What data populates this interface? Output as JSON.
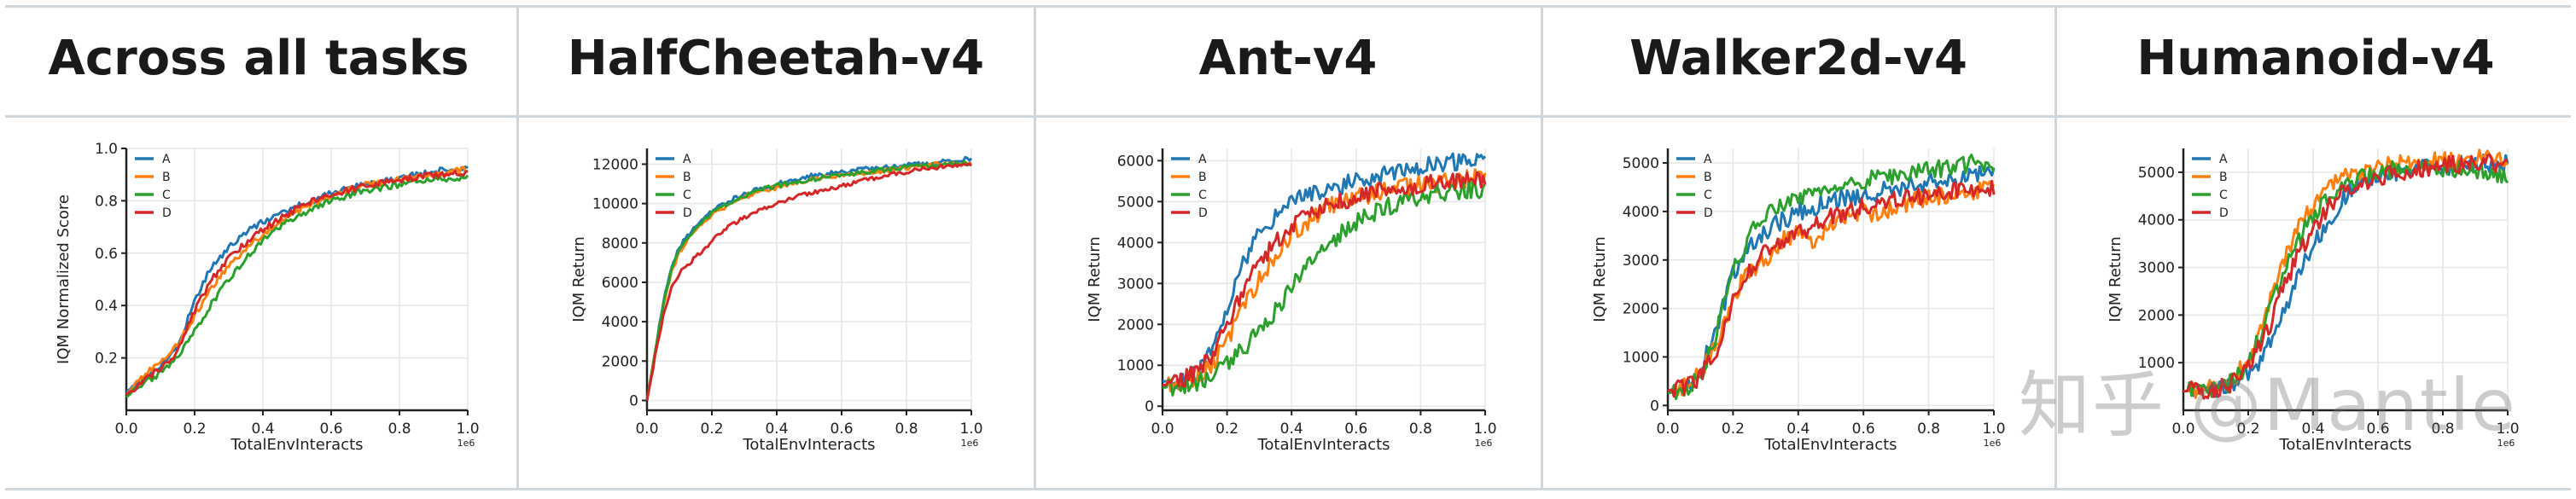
{
  "chart_data": [
    {
      "type": "line",
      "title": "Across all tasks",
      "xlabel": "TotalEnvInteracts",
      "ylabel": "IQM Normalized Score",
      "x_exponent": "1e6",
      "xlim": [
        0,
        1.0
      ],
      "ylim": [
        0,
        1.0
      ],
      "xticks": [
        0.0,
        0.2,
        0.4,
        0.6,
        0.8,
        1.0
      ],
      "xtick_labels": [
        "0.0",
        "0.2",
        "0.4",
        "0.6",
        "0.8",
        "1.0"
      ],
      "yticks": [
        0.2,
        0.4,
        0.6,
        0.8,
        1.0
      ],
      "ytick_labels": [
        "0.2",
        "0.4",
        "0.6",
        "0.8",
        "1.0"
      ],
      "grid": true,
      "legend": "top-left",
      "x": [
        0.0,
        0.05,
        0.1,
        0.15,
        0.2,
        0.25,
        0.3,
        0.35,
        0.4,
        0.45,
        0.5,
        0.55,
        0.6,
        0.65,
        0.7,
        0.75,
        0.8,
        0.85,
        0.9,
        0.95,
        1.0
      ],
      "series": [
        {
          "name": "A",
          "values": [
            0.07,
            0.12,
            0.17,
            0.24,
            0.42,
            0.55,
            0.62,
            0.68,
            0.72,
            0.75,
            0.78,
            0.8,
            0.83,
            0.85,
            0.86,
            0.88,
            0.89,
            0.9,
            0.91,
            0.92,
            0.93
          ]
        },
        {
          "name": "B",
          "values": [
            0.06,
            0.13,
            0.19,
            0.25,
            0.36,
            0.47,
            0.55,
            0.62,
            0.67,
            0.72,
            0.76,
            0.79,
            0.82,
            0.84,
            0.86,
            0.87,
            0.88,
            0.89,
            0.9,
            0.91,
            0.92
          ]
        },
        {
          "name": "C",
          "values": [
            0.05,
            0.1,
            0.14,
            0.2,
            0.3,
            0.41,
            0.5,
            0.58,
            0.65,
            0.7,
            0.74,
            0.77,
            0.8,
            0.82,
            0.84,
            0.85,
            0.86,
            0.87,
            0.88,
            0.88,
            0.89
          ]
        },
        {
          "name": "D",
          "values": [
            0.06,
            0.11,
            0.16,
            0.22,
            0.38,
            0.5,
            0.58,
            0.64,
            0.69,
            0.73,
            0.77,
            0.8,
            0.82,
            0.84,
            0.86,
            0.87,
            0.88,
            0.89,
            0.9,
            0.9,
            0.91
          ]
        }
      ]
    },
    {
      "type": "line",
      "title": "HalfCheetah-v4",
      "xlabel": "TotalEnvInteracts",
      "ylabel": "IQM Return",
      "x_exponent": "1e6",
      "xlim": [
        0,
        1.0
      ],
      "ylim": [
        -500,
        12800
      ],
      "xticks": [
        0.0,
        0.2,
        0.4,
        0.6,
        0.8,
        1.0
      ],
      "xtick_labels": [
        "0.0",
        "0.2",
        "0.4",
        "0.6",
        "0.8",
        "1.0"
      ],
      "yticks": [
        0,
        2000,
        4000,
        6000,
        8000,
        10000,
        12000
      ],
      "ytick_labels": [
        "0",
        "2000",
        "4000",
        "6000",
        "8000",
        "10000",
        "12000"
      ],
      "grid": true,
      "legend": "top-left",
      "x": [
        0.0,
        0.025,
        0.05,
        0.075,
        0.1,
        0.15,
        0.2,
        0.25,
        0.3,
        0.35,
        0.4,
        0.45,
        0.5,
        0.55,
        0.6,
        0.65,
        0.7,
        0.75,
        0.8,
        0.85,
        0.9,
        0.95,
        1.0
      ],
      "series": [
        {
          "name": "A",
          "values": [
            0,
            2500,
            5000,
            6800,
            7800,
            8900,
            9600,
            10100,
            10500,
            10800,
            11000,
            11200,
            11400,
            11500,
            11600,
            11700,
            11800,
            11900,
            11950,
            12000,
            12100,
            12200,
            12300
          ]
        },
        {
          "name": "B",
          "values": [
            0,
            2400,
            4800,
            6500,
            7500,
            8700,
            9400,
            9900,
            10300,
            10600,
            10800,
            11000,
            11200,
            11300,
            11400,
            11500,
            11600,
            11700,
            11800,
            11900,
            12000,
            12050,
            12100
          ]
        },
        {
          "name": "C",
          "values": [
            0,
            2450,
            4900,
            6600,
            7600,
            8800,
            9500,
            10000,
            10400,
            10700,
            10900,
            11100,
            11200,
            11350,
            11450,
            11550,
            11650,
            11750,
            11850,
            11900,
            11950,
            12000,
            12050
          ]
        },
        {
          "name": "D",
          "values": [
            0,
            2200,
            4300,
            5700,
            6500,
            7300,
            8100,
            8800,
            9300,
            9700,
            10000,
            10300,
            10500,
            10700,
            10900,
            11100,
            11300,
            11450,
            11600,
            11750,
            11850,
            11950,
            12000
          ]
        }
      ]
    },
    {
      "type": "line",
      "title": "Ant-v4",
      "xlabel": "TotalEnvInteracts",
      "ylabel": "IQM Return",
      "x_exponent": "1e6",
      "xlim": [
        0,
        1.0
      ],
      "ylim": [
        -100,
        6300
      ],
      "xticks": [
        0.0,
        0.2,
        0.4,
        0.6,
        0.8,
        1.0
      ],
      "xtick_labels": [
        "0.0",
        "0.2",
        "0.4",
        "0.6",
        "0.8",
        "1.0"
      ],
      "yticks": [
        0,
        1000,
        2000,
        3000,
        4000,
        5000,
        6000
      ],
      "ytick_labels": [
        "0",
        "1000",
        "2000",
        "3000",
        "4000",
        "5000",
        "6000"
      ],
      "grid": true,
      "legend": "top-left",
      "x": [
        0.0,
        0.05,
        0.1,
        0.15,
        0.2,
        0.25,
        0.3,
        0.35,
        0.4,
        0.45,
        0.5,
        0.55,
        0.6,
        0.65,
        0.7,
        0.75,
        0.8,
        0.85,
        0.9,
        0.95,
        1.0
      ],
      "series": [
        {
          "name": "A",
          "values": [
            600,
            650,
            750,
            1300,
            2400,
            3500,
            4200,
            4600,
            5000,
            5200,
            5300,
            5400,
            5500,
            5600,
            5700,
            5800,
            5850,
            5900,
            5950,
            6000,
            6050
          ]
        },
        {
          "name": "B",
          "values": [
            500,
            600,
            700,
            1000,
            1600,
            2400,
            3100,
            3700,
            4200,
            4500,
            4800,
            5000,
            5100,
            5200,
            5300,
            5350,
            5400,
            5450,
            5500,
            5550,
            5600
          ]
        },
        {
          "name": "C",
          "values": [
            450,
            500,
            550,
            700,
            1000,
            1400,
            1800,
            2300,
            2900,
            3400,
            3800,
            4200,
            4500,
            4700,
            4900,
            5000,
            5100,
            5200,
            5250,
            5300,
            5300
          ]
        },
        {
          "name": "D",
          "values": [
            500,
            600,
            800,
            1200,
            2000,
            2800,
            3500,
            4000,
            4400,
            4700,
            4900,
            5000,
            5100,
            5200,
            5300,
            5350,
            5400,
            5450,
            5500,
            5500,
            5500
          ]
        }
      ]
    },
    {
      "type": "line",
      "title": "Walker2d-v4",
      "xlabel": "TotalEnvInteracts",
      "ylabel": "IQM Return",
      "x_exponent": "1e6",
      "xlim": [
        0,
        1.0
      ],
      "ylim": [
        -100,
        5300
      ],
      "xticks": [
        0.0,
        0.2,
        0.4,
        0.6,
        0.8,
        1.0
      ],
      "xtick_labels": [
        "0.0",
        "0.2",
        "0.4",
        "0.6",
        "0.8",
        "1.0"
      ],
      "yticks": [
        0,
        1000,
        2000,
        3000,
        4000,
        5000
      ],
      "ytick_labels": [
        "0",
        "1000",
        "2000",
        "3000",
        "4000",
        "5000"
      ],
      "grid": true,
      "legend": "top-left",
      "x": [
        0.0,
        0.05,
        0.1,
        0.15,
        0.2,
        0.25,
        0.3,
        0.35,
        0.4,
        0.45,
        0.5,
        0.55,
        0.6,
        0.65,
        0.7,
        0.75,
        0.8,
        0.85,
        0.9,
        0.95,
        1.0
      ],
      "series": [
        {
          "name": "A",
          "values": [
            300,
            400,
            700,
            1600,
            2700,
            3300,
            3600,
            3800,
            4000,
            4100,
            4200,
            4300,
            4350,
            4400,
            4500,
            4550,
            4600,
            4650,
            4700,
            4750,
            4800
          ]
        },
        {
          "name": "B",
          "values": [
            300,
            400,
            700,
            1300,
            2200,
            2800,
            3000,
            3400,
            3600,
            3200,
            3800,
            3900,
            4000,
            3900,
            4100,
            4200,
            4300,
            4300,
            4400,
            4400,
            4500
          ]
        },
        {
          "name": "C",
          "values": [
            250,
            350,
            600,
            1500,
            2800,
            3500,
            3900,
            4100,
            4300,
            4400,
            4500,
            4600,
            4650,
            4700,
            4750,
            4800,
            4850,
            4900,
            4950,
            5000,
            5000
          ]
        },
        {
          "name": "D",
          "values": [
            300,
            400,
            600,
            1200,
            2200,
            2800,
            3200,
            3400,
            3600,
            3700,
            3900,
            4000,
            4100,
            4200,
            4250,
            4300,
            4350,
            4400,
            4450,
            4450,
            4500
          ]
        }
      ]
    },
    {
      "type": "line",
      "title": "Humanoid-v4",
      "xlabel": "TotalEnvInteracts",
      "ylabel": "IQM Return",
      "x_exponent": "1e6",
      "xlim": [
        0,
        1.0
      ],
      "ylim": [
        0,
        5500
      ],
      "xticks": [
        0.0,
        0.2,
        0.4,
        0.6,
        0.8,
        1.0
      ],
      "xtick_labels": [
        "0.0",
        "0.2",
        "0.4",
        "0.6",
        "0.8",
        "1.0"
      ],
      "yticks": [
        1000,
        2000,
        3000,
        4000,
        5000
      ],
      "ytick_labels": [
        "1000",
        "2000",
        "3000",
        "4000",
        "5000"
      ],
      "grid": true,
      "legend": "top-left",
      "x": [
        0.0,
        0.05,
        0.1,
        0.15,
        0.2,
        0.25,
        0.3,
        0.35,
        0.4,
        0.45,
        0.5,
        0.55,
        0.6,
        0.65,
        0.7,
        0.75,
        0.8,
        0.85,
        0.9,
        0.95,
        1.0
      ],
      "series": [
        {
          "name": "A",
          "values": [
            400,
            420,
            450,
            500,
            700,
            1200,
            1900,
            2800,
            3500,
            4000,
            4500,
            4800,
            4900,
            5000,
            5050,
            5100,
            5100,
            5150,
            5150,
            5200,
            5200
          ]
        },
        {
          "name": "B",
          "values": [
            400,
            430,
            480,
            600,
            1100,
            2000,
            3000,
            3800,
            4300,
            4700,
            4900,
            5000,
            5100,
            5150,
            5200,
            5200,
            5250,
            5250,
            5300,
            5300,
            5300
          ]
        },
        {
          "name": "C",
          "values": [
            400,
            430,
            470,
            580,
            1000,
            1800,
            2700,
            3500,
            4100,
            4500,
            4800,
            4900,
            5000,
            5050,
            5100,
            5100,
            5100,
            5050,
            5000,
            4950,
            4900
          ]
        },
        {
          "name": "D",
          "values": [
            400,
            420,
            460,
            550,
            900,
            1500,
            2400,
            3200,
            3800,
            4300,
            4600,
            4800,
            4900,
            5000,
            5050,
            5100,
            5150,
            5150,
            5200,
            5200,
            5200
          ]
        }
      ]
    }
  ],
  "colors": {
    "A": "#1f77b4",
    "B": "#ff7f0e",
    "C": "#2ca02c",
    "D": "#d62728"
  },
  "watermark": "知乎 @Mantle"
}
